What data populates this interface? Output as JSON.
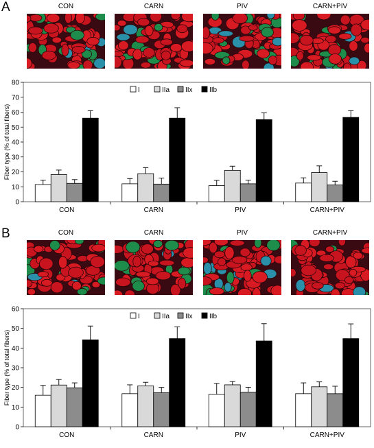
{
  "panels": [
    {
      "letter": "A",
      "micrograph_titles": [
        "CON",
        "CARN",
        "PIV",
        "CARN+PIV"
      ],
      "chart_data": {
        "type": "bar",
        "categories": [
          "CON",
          "CARN",
          "PIV",
          "CARN+PIV"
        ],
        "series": [
          {
            "name": "I",
            "values": [
              11.5,
              12.0,
              10.8,
              12.5
            ],
            "errors": [
              3.0,
              3.5,
              3.5,
              3.5
            ],
            "color": "#ffffff"
          },
          {
            "name": "IIa",
            "values": [
              18.2,
              18.8,
              21.0,
              19.5
            ],
            "errors": [
              3.0,
              4.0,
              2.8,
              4.5
            ],
            "color": "#d9d9d9"
          },
          {
            "name": "IIx",
            "values": [
              12.3,
              11.8,
              12.0,
              11.2
            ],
            "errors": [
              2.5,
              4.0,
              2.5,
              2.5
            ],
            "color": "#8c8c8c"
          },
          {
            "name": "IIb",
            "values": [
              56.0,
              56.0,
              55.0,
              56.5
            ],
            "errors": [
              5.0,
              7.0,
              4.5,
              4.5
            ],
            "color": "#000000"
          }
        ],
        "ylabel": "Fiber type (% of total fibers)",
        "ylim": [
          0,
          80
        ],
        "yticks": [
          0,
          10,
          20,
          30,
          40,
          50,
          60,
          70,
          80
        ],
        "legend_position": "top-center"
      }
    },
    {
      "letter": "B",
      "micrograph_titles": [
        "CON",
        "CARN",
        "PIV",
        "CARN+PIV"
      ],
      "chart_data": {
        "type": "bar",
        "categories": [
          "CON",
          "CARN",
          "PIV",
          "CARN+PIV"
        ],
        "series": [
          {
            "name": "I",
            "values": [
              16.0,
              16.8,
              16.5,
              16.8
            ],
            "errors": [
              5.0,
              4.5,
              5.5,
              5.5
            ],
            "color": "#ffffff"
          },
          {
            "name": "IIa",
            "values": [
              21.2,
              20.8,
              21.3,
              20.3
            ],
            "errors": [
              2.8,
              1.8,
              1.7,
              2.5
            ],
            "color": "#d9d9d9"
          },
          {
            "name": "IIx",
            "values": [
              19.8,
              17.3,
              17.6,
              16.8
            ],
            "errors": [
              2.5,
              2.7,
              2.5,
              3.8
            ],
            "color": "#8c8c8c"
          },
          {
            "name": "IIb",
            "values": [
              44.2,
              44.8,
              43.6,
              44.8
            ],
            "errors": [
              7.0,
              6.0,
              8.8,
              7.5
            ],
            "color": "#000000"
          }
        ],
        "ylabel": "Fiber type (% of total fibers)",
        "ylim": [
          0,
          60
        ],
        "yticks": [
          0,
          10,
          20,
          30,
          40,
          50,
          60
        ],
        "legend_position": "top-center"
      }
    }
  ]
}
